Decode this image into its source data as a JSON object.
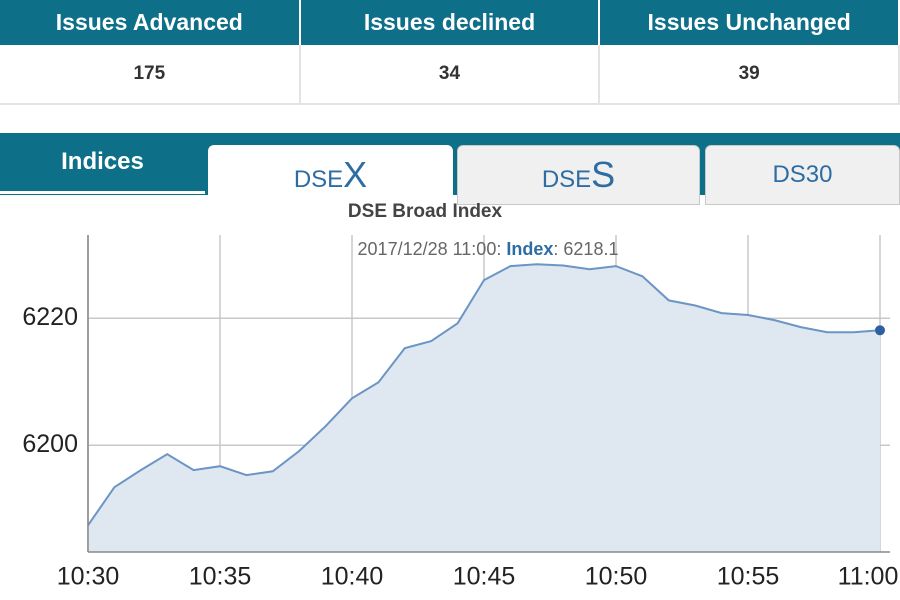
{
  "table": {
    "headers": [
      "Issues Advanced",
      "Issues declined",
      "Issues Unchanged"
    ],
    "values": [
      175,
      34,
      39
    ]
  },
  "tabs": {
    "section": "Indices",
    "items": [
      {
        "prefix": "DSE",
        "suffix": "X"
      },
      {
        "prefix": "DSE",
        "suffix": "S"
      },
      {
        "prefix": "DS30",
        "suffix": ""
      }
    ]
  },
  "chart_data": {
    "type": "area",
    "title": "DSE Broad Index",
    "tooltip": {
      "time": "2017/12/28 11:00:",
      "label": "Index",
      "sep": ":",
      "value": 6218.1
    },
    "categories": [
      "10:30",
      null,
      null,
      null,
      null,
      "10:35",
      null,
      null,
      null,
      null,
      "10:40",
      null,
      null,
      null,
      null,
      "10:45",
      null,
      null,
      null,
      null,
      "10:50",
      null,
      null,
      null,
      null,
      "10:55",
      null,
      null,
      null,
      null,
      "11:00"
    ],
    "series": [
      {
        "name": "Index",
        "color": "#6b95c4",
        "values": [
          6187.4,
          6193.4,
          6196.1,
          6198.6,
          6196.1,
          6196.7,
          6195.3,
          6195.9,
          6199.1,
          6203.0,
          6207.4,
          6209.9,
          6215.3,
          6216.4,
          6219.2,
          6226.0,
          6228.2,
          6228.5,
          6228.3,
          6227.7,
          6228.2,
          6226.6,
          6222.8,
          6222.0,
          6220.8,
          6220.5,
          6219.7,
          6218.6,
          6217.8,
          6217.8,
          6218.1
        ]
      }
    ],
    "ylim": [
      6183.2,
      6233.1
    ],
    "yticks": [
      6200,
      6220
    ],
    "grid": true
  }
}
